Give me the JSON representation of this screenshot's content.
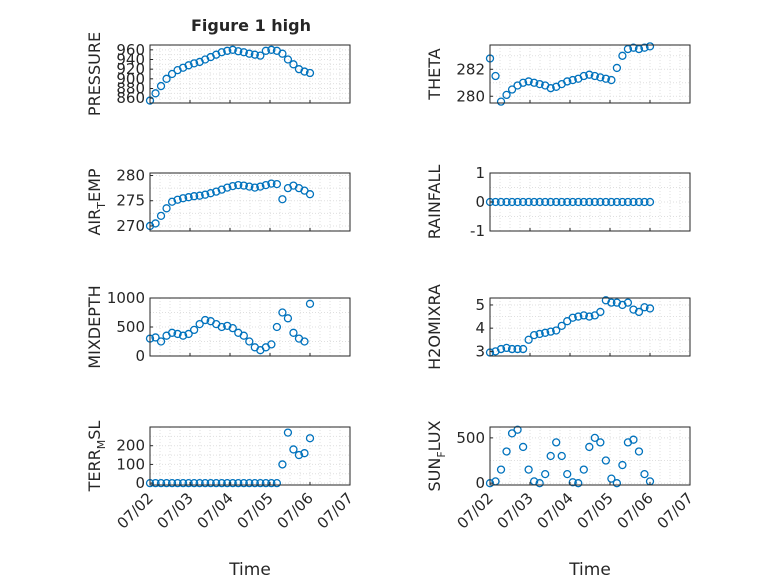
{
  "title": "Figure 1 high",
  "xlabel": "Time",
  "x_ticks": [
    "07/02",
    "07/03",
    "07/04",
    "07/05",
    "07/06",
    "07/07"
  ],
  "colors": {
    "marker": "#0072BD",
    "axis": "#262626",
    "grid": "#DFDFDF"
  },
  "chart_data": [
    {
      "type": "scatter",
      "ylabel": "PRESSURE",
      "xlim": [
        "07/02",
        "07/07"
      ],
      "ylim": [
        850,
        970
      ],
      "yticks": [
        860,
        880,
        900,
        920,
        940,
        960
      ],
      "grid": true,
      "x_end": "07/06",
      "series": [
        {
          "values": [
            855,
            870,
            885,
            900,
            910,
            918,
            923,
            928,
            932,
            935,
            940,
            945,
            950,
            955,
            958,
            960,
            957,
            955,
            952,
            950,
            948,
            958,
            960,
            958,
            952,
            940,
            930,
            920,
            915,
            912
          ]
        }
      ]
    },
    {
      "type": "scatter",
      "ylabel": "THETA",
      "xlim": [
        "07/02",
        "07/07"
      ],
      "ylim": [
        279.5,
        283.8
      ],
      "yticks": [
        280,
        282
      ],
      "grid": true,
      "x_end": "07/06",
      "series": [
        {
          "values": [
            282.8,
            281.5,
            279.6,
            280.1,
            280.5,
            280.8,
            281.0,
            281.1,
            281.0,
            280.9,
            280.8,
            280.6,
            280.7,
            280.9,
            281.1,
            281.2,
            281.3,
            281.5,
            281.6,
            281.5,
            281.4,
            281.3,
            281.2,
            282.1,
            283.0,
            283.5,
            283.6,
            283.5,
            283.6,
            283.7
          ]
        }
      ]
    },
    {
      "type": "scatter",
      "ylabel": "AIR_TEMP",
      "xlim": [
        "07/02",
        "07/07"
      ],
      "ylim": [
        269,
        280.5
      ],
      "yticks": [
        270,
        275,
        280
      ],
      "grid": true,
      "x_end": "07/06",
      "series": [
        {
          "values": [
            270.0,
            270.5,
            272.0,
            273.5,
            274.8,
            275.2,
            275.5,
            275.7,
            275.9,
            276.0,
            276.2,
            276.5,
            276.8,
            277.2,
            277.6,
            277.9,
            278.1,
            278.0,
            277.8,
            277.6,
            277.8,
            278.1,
            278.4,
            278.3,
            275.3,
            277.5,
            278.0,
            277.5,
            277.0,
            276.3
          ]
        }
      ]
    },
    {
      "type": "scatter",
      "ylabel": "RAINFALL",
      "xlim": [
        "07/02",
        "07/07"
      ],
      "ylim": [
        -1,
        1
      ],
      "yticks": [
        -1,
        0,
        1
      ],
      "grid": true,
      "x_end": "07/06",
      "series": [
        {
          "values": [
            0,
            0,
            0,
            0,
            0,
            0,
            0,
            0,
            0,
            0,
            0,
            0,
            0,
            0,
            0,
            0,
            0,
            0,
            0,
            0,
            0,
            0,
            0,
            0,
            0,
            0,
            0,
            0,
            0,
            0
          ]
        }
      ]
    },
    {
      "type": "scatter",
      "ylabel": "MIXDEPTH",
      "xlim": [
        "07/02",
        "07/07"
      ],
      "ylim": [
        0,
        1000
      ],
      "yticks": [
        0,
        500,
        1000
      ],
      "grid": true,
      "x_end": "07/06",
      "series": [
        {
          "values": [
            300,
            320,
            250,
            350,
            400,
            380,
            350,
            380,
            450,
            550,
            620,
            600,
            550,
            500,
            520,
            480,
            400,
            350,
            250,
            150,
            100,
            150,
            200,
            500,
            750,
            650,
            400,
            300,
            250,
            900
          ]
        }
      ]
    },
    {
      "type": "scatter",
      "ylabel": "H2OMIXRA",
      "xlim": [
        "07/02",
        "07/07"
      ],
      "ylim": [
        2.8,
        5.3
      ],
      "yticks": [
        3,
        4,
        5
      ],
      "grid": true,
      "x_end": "07/06",
      "series": [
        {
          "values": [
            2.95,
            3.0,
            3.1,
            3.15,
            3.1,
            3.1,
            3.1,
            3.5,
            3.7,
            3.75,
            3.8,
            3.85,
            3.9,
            4.1,
            4.3,
            4.45,
            4.5,
            4.55,
            4.5,
            4.55,
            4.7,
            5.2,
            5.1,
            5.1,
            5.0,
            5.1,
            4.8,
            4.7,
            4.9,
            4.85
          ]
        }
      ]
    },
    {
      "type": "scatter",
      "ylabel": "TERR_MSL",
      "xlim": [
        "07/02",
        "07/07"
      ],
      "ylim": [
        -10,
        300
      ],
      "yticks": [
        0,
        100,
        200
      ],
      "grid": true,
      "x_end": "07/06",
      "series": [
        {
          "values": [
            0,
            0,
            0,
            0,
            0,
            0,
            0,
            0,
            0,
            0,
            0,
            0,
            0,
            0,
            0,
            0,
            0,
            0,
            0,
            0,
            0,
            0,
            0,
            0,
            100,
            270,
            180,
            150,
            160,
            240
          ]
        }
      ]
    },
    {
      "type": "scatter",
      "ylabel": "SUN_FLUX",
      "xlim": [
        "07/02",
        "07/07"
      ],
      "ylim": [
        -20,
        620
      ],
      "yticks": [
        0,
        500
      ],
      "grid": true,
      "x_end": "07/06",
      "series": [
        {
          "values": [
            0,
            20,
            150,
            350,
            550,
            590,
            400,
            150,
            20,
            0,
            100,
            300,
            450,
            300,
            100,
            10,
            0,
            150,
            400,
            500,
            450,
            250,
            50,
            0,
            200,
            450,
            480,
            350,
            100,
            20
          ]
        }
      ]
    }
  ]
}
